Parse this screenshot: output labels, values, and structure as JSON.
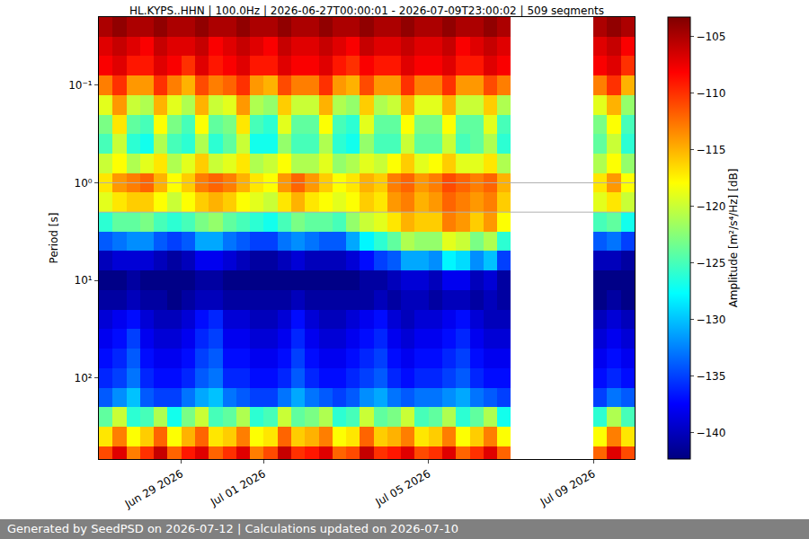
{
  "chart_data": {
    "type": "heatmap",
    "title": "HL.KYPS..HHN | 100.0Hz | 2026-06-27T00:00:01 - 2026-07-09T23:00:02 | 509 segments",
    "y_label": "Period [s]",
    "log": "y",
    "grid": "y",
    "color": "jet",
    "xlim": [
      "2026-06-27 00:00",
      "2026-07-10 00:00"
    ],
    "xticks": [
      {
        "value": "2026-06-29",
        "label": "Jun 29 2026"
      },
      {
        "value": "2026-07-01",
        "label": "Jul 01 2026"
      },
      {
        "value": "2026-07-05",
        "label": "Jul 05 2026"
      },
      {
        "value": "2026-07-09",
        "label": "Jul 09 2026"
      }
    ],
    "ylim": [
      680,
      0.02
    ],
    "yticks": [
      {
        "value": 0.1,
        "label": "10⁻¹"
      },
      {
        "value": 1,
        "label": "10⁰"
      },
      {
        "value": 10,
        "label": "10¹"
      },
      {
        "value": 100,
        "label": "10²"
      }
    ],
    "zlabel": "Amplitude [m²/s⁴/Hz] [dB]",
    "zlim": [
      -142.3,
      -103.3
    ],
    "zticks": [
      -140,
      -135,
      -130,
      -125,
      -120,
      -115,
      -110,
      -105
    ],
    "x": [
      "2026-06-27 04:00",
      "2026-06-27 12:00",
      "2026-06-27 20:00",
      "2026-06-28 04:00",
      "2026-06-28 12:00",
      "2026-06-28 20:00",
      "2026-06-29 04:00",
      "2026-06-29 12:00",
      "2026-06-29 20:00",
      "2026-06-30 04:00",
      "2026-06-30 12:00",
      "2026-06-30 20:00",
      "2026-07-01 04:00",
      "2026-07-01 12:00",
      "2026-07-01 20:00",
      "2026-07-02 04:00",
      "2026-07-02 12:00",
      "2026-07-02 20:00",
      "2026-07-03 04:00",
      "2026-07-03 12:00",
      "2026-07-03 20:00",
      "2026-07-04 04:00",
      "2026-07-04 12:00",
      "2026-07-04 20:00",
      "2026-07-05 04:00",
      "2026-07-05 12:00",
      "2026-07-05 20:00",
      "2026-07-06 04:00",
      "2026-07-06 12:00",
      "2026-07-06 20:00",
      "2026-07-07 04:00",
      "2026-07-07 12:00",
      "2026-07-07 20:00",
      "2026-07-08 04:00",
      "2026-07-08 12:00",
      "2026-07-08 20:00",
      "2026-07-09 04:00",
      "2026-07-09 12:00",
      "2026-07-09 20:00"
    ],
    "period_edges": [
      0.02,
      0.0316,
      0.05,
      0.0794,
      0.126,
      0.2,
      0.316,
      0.5,
      0.794,
      1.26,
      2,
      3.16,
      5,
      7.94,
      12.6,
      20,
      31.6,
      50,
      79.4,
      126,
      200,
      316,
      500,
      794
    ],
    "z": [
      [
        -105,
        -104,
        -105,
        -105,
        -104,
        -105,
        -105,
        -104,
        -105,
        -105,
        -104,
        -105,
        -105,
        -104,
        -105,
        -105,
        -104,
        -105,
        -105,
        -104,
        -105,
        -105,
        -104,
        -105,
        -105,
        -104,
        -105,
        -105,
        -104,
        -105,
        null,
        null,
        null,
        null,
        null,
        null,
        -105,
        -104,
        -105
      ],
      [
        -107,
        -106,
        -107,
        -108,
        -106,
        -107,
        -107,
        -106,
        -108,
        -107,
        -106,
        -107,
        -108,
        -106,
        -107,
        -107,
        -106,
        -107,
        -108,
        -106,
        -107,
        -107,
        -106,
        -107,
        -107,
        -106,
        -108,
        -107,
        -106,
        -107,
        null,
        null,
        null,
        null,
        null,
        null,
        -107,
        -106,
        -108
      ],
      [
        -108,
        -107,
        -109,
        -109,
        -107,
        -108,
        -110,
        -107,
        -109,
        -108,
        -107,
        -109,
        -109,
        -107,
        -108,
        -108,
        -107,
        -109,
        -110,
        -108,
        -109,
        -109,
        -107,
        -108,
        -108,
        -107,
        -109,
        -109,
        -107,
        -108,
        null,
        null,
        null,
        null,
        null,
        null,
        -108,
        -107,
        -110
      ],
      [
        -113,
        -110,
        -114,
        -114,
        -110,
        -113,
        -115,
        -111,
        -113,
        -112,
        -110,
        -114,
        -115,
        -111,
        -113,
        -113,
        -110,
        -114,
        -115,
        -111,
        -114,
        -114,
        -110,
        -113,
        -113,
        -110,
        -114,
        -114,
        -111,
        -113,
        null,
        null,
        null,
        null,
        null,
        null,
        -113,
        -110,
        -115
      ],
      [
        -119,
        -114,
        -120,
        -121,
        -115,
        -119,
        -121,
        -115,
        -120,
        -119,
        -114,
        -121,
        -122,
        -116,
        -120,
        -120,
        -115,
        -121,
        -122,
        -116,
        -121,
        -120,
        -115,
        -119,
        -119,
        -115,
        -120,
        -120,
        -116,
        -121,
        null,
        null,
        null,
        null,
        null,
        null,
        -119,
        -115,
        -122
      ],
      [
        -123,
        -117,
        -124,
        -125,
        -118,
        -123,
        -125,
        -118,
        -124,
        -123,
        -117,
        -125,
        -126,
        -119,
        -124,
        -124,
        -118,
        -125,
        -126,
        -119,
        -124,
        -124,
        -118,
        -123,
        -123,
        -118,
        -124,
        -124,
        -119,
        -125,
        null,
        null,
        null,
        null,
        null,
        null,
        -123,
        -118,
        -125
      ],
      [
        -125,
        -120,
        -126,
        -127,
        -121,
        -125,
        -126,
        -121,
        -126,
        -124,
        -120,
        -127,
        -127,
        -122,
        -125,
        -125,
        -121,
        -126,
        -127,
        -122,
        -125,
        -125,
        -120,
        -124,
        -124,
        -120,
        -125,
        -124,
        -121,
        -126,
        null,
        null,
        null,
        null,
        null,
        null,
        -124,
        -120,
        -126
      ],
      [
        -120,
        -118,
        -121,
        -119,
        -117,
        -121,
        -119,
        -116,
        -120,
        -119,
        -117,
        -121,
        -120,
        -118,
        -121,
        -121,
        -119,
        -122,
        -121,
        -119,
        -120,
        -118,
        -116,
        -119,
        -118,
        -116,
        -119,
        -119,
        -117,
        -121,
        null,
        null,
        null,
        null,
        null,
        null,
        -121,
        -118,
        -122
      ],
      [
        -117,
        -114,
        -113,
        -112,
        -115,
        -118,
        -116,
        -113,
        -112,
        -113,
        -115,
        -117,
        -118,
        -114,
        -112,
        -114,
        -116,
        -118,
        -117,
        -115,
        -116,
        -113,
        -112,
        -114,
        -113,
        -111,
        -112,
        -113,
        -112,
        -115,
        null,
        null,
        null,
        null,
        null,
        null,
        -117,
        -114,
        -118
      ],
      [
        -119,
        -117,
        -116,
        -116,
        -118,
        -120,
        -118,
        -116,
        -115,
        -116,
        -118,
        -119,
        -120,
        -117,
        -115,
        -117,
        -118,
        -119,
        -118,
        -116,
        -117,
        -114,
        -113,
        -115,
        -114,
        -112,
        -113,
        -114,
        -113,
        -116,
        null,
        null,
        null,
        null,
        null,
        null,
        -119,
        -117,
        -120
      ],
      [
        -126,
        -124,
        -124,
        -123,
        -125,
        -126,
        -125,
        -123,
        -122,
        -124,
        -125,
        -126,
        -127,
        -125,
        -123,
        -124,
        -124,
        -125,
        -122,
        -120,
        -119,
        -117,
        -115,
        -116,
        -116,
        -113,
        -114,
        -116,
        -114,
        -118,
        null,
        null,
        null,
        null,
        null,
        null,
        -125,
        -124,
        -127
      ],
      [
        -134,
        -133,
        -132,
        -132,
        -134,
        -135,
        -134,
        -131,
        -131,
        -133,
        -134,
        -135,
        -135,
        -133,
        -132,
        -133,
        -134,
        -134,
        -131,
        -128,
        -126,
        -124,
        -121,
        -122,
        -122,
        -119,
        -120,
        -123,
        -121,
        -126,
        null,
        null,
        null,
        null,
        null,
        null,
        -134,
        -133,
        -135
      ],
      [
        -140,
        -139,
        -139,
        -139,
        -140,
        -141,
        -140,
        -138,
        -138,
        -139,
        -140,
        -141,
        -141,
        -140,
        -139,
        -140,
        -140,
        -140,
        -139,
        -137,
        -135,
        -134,
        -131,
        -131,
        -132,
        -128,
        -129,
        -132,
        -130,
        -135,
        null,
        null,
        null,
        null,
        null,
        null,
        -140,
        -140,
        -141
      ],
      [
        -142,
        -142,
        -141,
        -142,
        -142,
        -142,
        -142,
        -141,
        -141,
        -142,
        -142,
        -142,
        -142,
        -142,
        -142,
        -142,
        -142,
        -142,
        -142,
        -141,
        -141,
        -140,
        -139,
        -139,
        -140,
        -138,
        -138,
        -140,
        -139,
        -141,
        null,
        null,
        null,
        null,
        null,
        null,
        -142,
        -142,
        -142
      ],
      [
        -141,
        -141,
        -140,
        -141,
        -141,
        -142,
        -141,
        -140,
        -140,
        -141,
        -141,
        -141,
        -141,
        -141,
        -140,
        -141,
        -141,
        -141,
        -141,
        -141,
        -140,
        -141,
        -140,
        -140,
        -141,
        -140,
        -140,
        -141,
        -140,
        -141,
        null,
        null,
        null,
        null,
        null,
        null,
        -142,
        -141,
        -142
      ],
      [
        -139,
        -138,
        -137,
        -139,
        -140,
        -140,
        -139,
        -137,
        -136,
        -139,
        -139,
        -140,
        -140,
        -139,
        -137,
        -139,
        -140,
        -140,
        -139,
        -138,
        -137,
        -139,
        -140,
        -139,
        -139,
        -138,
        -137,
        -139,
        -140,
        -140,
        null,
        null,
        null,
        null,
        null,
        null,
        -140,
        -139,
        -140
      ],
      [
        -138,
        -137,
        -135,
        -138,
        -139,
        -139,
        -138,
        -136,
        -135,
        -138,
        -138,
        -139,
        -139,
        -138,
        -136,
        -138,
        -139,
        -139,
        -138,
        -137,
        -136,
        -138,
        -139,
        -138,
        -138,
        -137,
        -136,
        -138,
        -139,
        -139,
        null,
        null,
        null,
        null,
        null,
        null,
        -139,
        -138,
        -139
      ],
      [
        -137,
        -136,
        -134,
        -137,
        -138,
        -138,
        -137,
        -135,
        -134,
        -137,
        -137,
        -138,
        -138,
        -137,
        -135,
        -137,
        -138,
        -138,
        -137,
        -136,
        -135,
        -137,
        -138,
        -137,
        -137,
        -136,
        -135,
        -137,
        -138,
        -138,
        null,
        null,
        null,
        null,
        null,
        null,
        -138,
        -137,
        -138
      ],
      [
        -136,
        -135,
        -133,
        -136,
        -137,
        -137,
        -136,
        -134,
        -133,
        -136,
        -136,
        -137,
        -137,
        -136,
        -134,
        -136,
        -137,
        -137,
        -136,
        -135,
        -134,
        -136,
        -137,
        -136,
        -136,
        -135,
        -134,
        -136,
        -137,
        -137,
        null,
        null,
        null,
        null,
        null,
        null,
        -137,
        -136,
        -137
      ],
      [
        -134,
        -132,
        -130,
        -134,
        -135,
        -135,
        -133,
        -131,
        -130,
        -133,
        -134,
        -135,
        -135,
        -133,
        -131,
        -133,
        -134,
        -135,
        -134,
        -132,
        -131,
        -133,
        -134,
        -133,
        -133,
        -132,
        -131,
        -133,
        -134,
        -135,
        null,
        null,
        null,
        null,
        null,
        null,
        -135,
        -133,
        -134
      ],
      [
        -124,
        -120,
        -126,
        -125,
        -121,
        -127,
        -123,
        -120,
        -125,
        -124,
        -121,
        -126,
        -125,
        -120,
        -124,
        -123,
        -121,
        -126,
        -125,
        -120,
        -124,
        -123,
        -120,
        -125,
        -124,
        -121,
        -126,
        -124,
        -121,
        -127,
        null,
        null,
        null,
        null,
        null,
        null,
        -126,
        -121,
        -125
      ],
      [
        -117,
        -113,
        -118,
        -116,
        -112,
        -118,
        -115,
        -112,
        -117,
        -116,
        -113,
        -118,
        -117,
        -112,
        -116,
        -115,
        -113,
        -118,
        -117,
        -112,
        -116,
        -115,
        -113,
        -117,
        -116,
        -113,
        -118,
        -116,
        -113,
        -118,
        null,
        null,
        null,
        null,
        null,
        null,
        -118,
        -113,
        -117
      ],
      [
        -111,
        -107,
        -113,
        -110,
        -106,
        -112,
        -109,
        -107,
        -112,
        -110,
        -107,
        -113,
        -111,
        -106,
        -110,
        -109,
        -107,
        -112,
        -111,
        -106,
        -110,
        -109,
        -107,
        -111,
        -110,
        -107,
        -112,
        -110,
        -107,
        -112,
        null,
        null,
        null,
        null,
        null,
        null,
        -112,
        -107,
        -111
      ]
    ]
  },
  "footer": "Generated by SeedPSD on 2026-07-12 | Calculations updated on 2026-07-10"
}
